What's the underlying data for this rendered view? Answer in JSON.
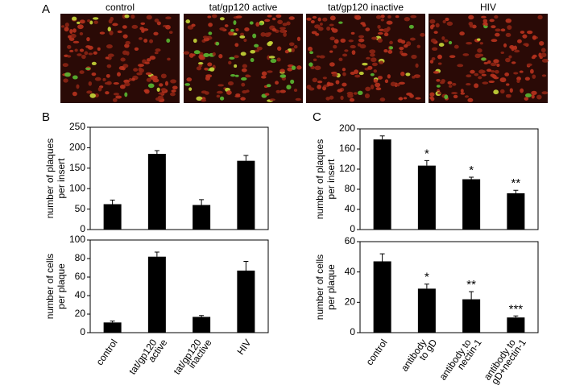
{
  "panels": [
    "A",
    "B",
    "C"
  ],
  "image_labels": [
    "control",
    "tat/gp120 active",
    "tat/gp120 inactive",
    "HIV"
  ],
  "chart_data": [
    {
      "type": "bar",
      "ylabel": [
        "number of plaques",
        "per insert"
      ],
      "categories": [
        null,
        null,
        null,
        null
      ],
      "values": [
        62,
        185,
        60,
        168
      ],
      "errors": [
        10,
        8,
        13,
        13
      ],
      "color": "#000000",
      "ylim": [
        0,
        250
      ],
      "yticks": [
        0,
        50,
        100,
        150,
        200,
        250
      ]
    },
    {
      "type": "bar",
      "ylabel": [
        "number of cells",
        "per plaque"
      ],
      "categories": [
        [
          "control"
        ],
        [
          "tat/gp120",
          "active"
        ],
        [
          "tat/gp120",
          "inactive"
        ],
        [
          "HIV"
        ]
      ],
      "values": [
        11,
        82,
        17,
        67
      ],
      "errors": [
        1.5,
        5,
        1.5,
        10
      ],
      "color": "#000000",
      "ylim": [
        0,
        100
      ],
      "yticks": [
        0,
        20,
        40,
        60,
        80,
        100
      ]
    },
    {
      "type": "bar",
      "ylabel": [
        "number of plaques",
        "per insert"
      ],
      "categories": [
        null,
        null,
        null,
        null
      ],
      "values": [
        179,
        127,
        100,
        72
      ],
      "errors": [
        7,
        10,
        4,
        6
      ],
      "annotations": [
        null,
        "*",
        "*",
        "**"
      ],
      "color": "#000000",
      "ylim": [
        0,
        200
      ],
      "yticks": [
        0,
        40,
        80,
        120,
        160,
        200
      ]
    },
    {
      "type": "bar",
      "ylabel": [
        "number of cells",
        "per plaque"
      ],
      "categories": [
        [
          "control"
        ],
        [
          "antibody",
          "to gD"
        ],
        [
          "antibody to",
          "nectin-1"
        ],
        [
          "antibody to",
          "gD+nectin-1"
        ]
      ],
      "values": [
        47,
        29,
        22,
        10
      ],
      "errors": [
        5,
        3,
        5,
        1
      ],
      "annotations": [
        null,
        "*",
        "**",
        "***"
      ],
      "color": "#000000",
      "ylim": [
        0,
        60
      ],
      "yticks": [
        0,
        20,
        40,
        60
      ]
    }
  ]
}
